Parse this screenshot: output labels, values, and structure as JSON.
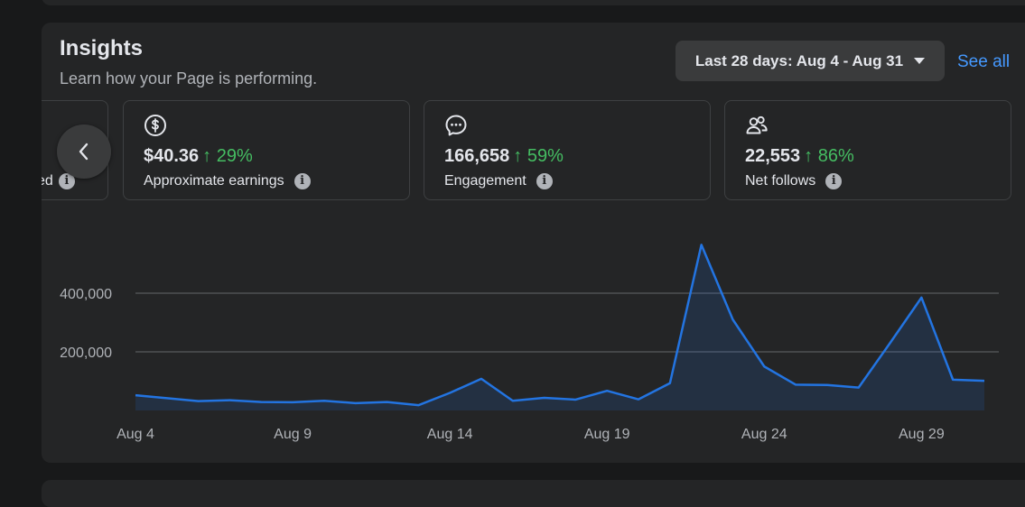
{
  "insights": {
    "title": "Insights",
    "subtitle": "Learn how your Page is performing.",
    "date_range_label": "Last 28 days: Aug 4 - Aug 31",
    "see_all_label": "See all",
    "partial_metric_label": "ed",
    "metrics": [
      {
        "value": "$40.36",
        "change": "↑ 29%",
        "label": "Approximate earnings",
        "icon": "dollar-circle-icon"
      },
      {
        "value": "166,658",
        "change": "↑ 59%",
        "label": "Engagement",
        "icon": "chat-bubble-icon"
      },
      {
        "value": "22,553",
        "change": "↑ 86%",
        "label": "Net follows",
        "icon": "people-icon"
      }
    ],
    "info_glyph": "i"
  },
  "colors": {
    "background": "#18191a",
    "card": "#242526",
    "accent_blue": "#4599ff",
    "positive_green": "#45bd62",
    "line": "#2374e1"
  },
  "chart_data": {
    "type": "area",
    "x": [
      "Aug 4",
      "Aug 5",
      "Aug 6",
      "Aug 7",
      "Aug 8",
      "Aug 9",
      "Aug 10",
      "Aug 11",
      "Aug 12",
      "Aug 13",
      "Aug 14",
      "Aug 15",
      "Aug 16",
      "Aug 17",
      "Aug 18",
      "Aug 19",
      "Aug 20",
      "Aug 21",
      "Aug 22",
      "Aug 23",
      "Aug 24",
      "Aug 25",
      "Aug 26",
      "Aug 27",
      "Aug 28",
      "Aug 29",
      "Aug 30",
      "Aug 31"
    ],
    "values": [
      52000,
      42000,
      32000,
      35000,
      29000,
      28000,
      33000,
      25000,
      29000,
      18000,
      60000,
      108000,
      33000,
      43000,
      37000,
      67000,
      38000,
      93000,
      565000,
      310000,
      150000,
      88000,
      87000,
      78000,
      230000,
      385000,
      105000,
      101000
    ],
    "x_tick_labels": [
      "Aug 4",
      "Aug 9",
      "Aug 14",
      "Aug 19",
      "Aug 24",
      "Aug 29"
    ],
    "y_tick_labels": [
      "200,000",
      "400,000"
    ],
    "y_ticks": [
      200000,
      400000
    ],
    "ylim": [
      0,
      600000
    ],
    "grid": true,
    "title": "",
    "xlabel": "",
    "ylabel": ""
  }
}
